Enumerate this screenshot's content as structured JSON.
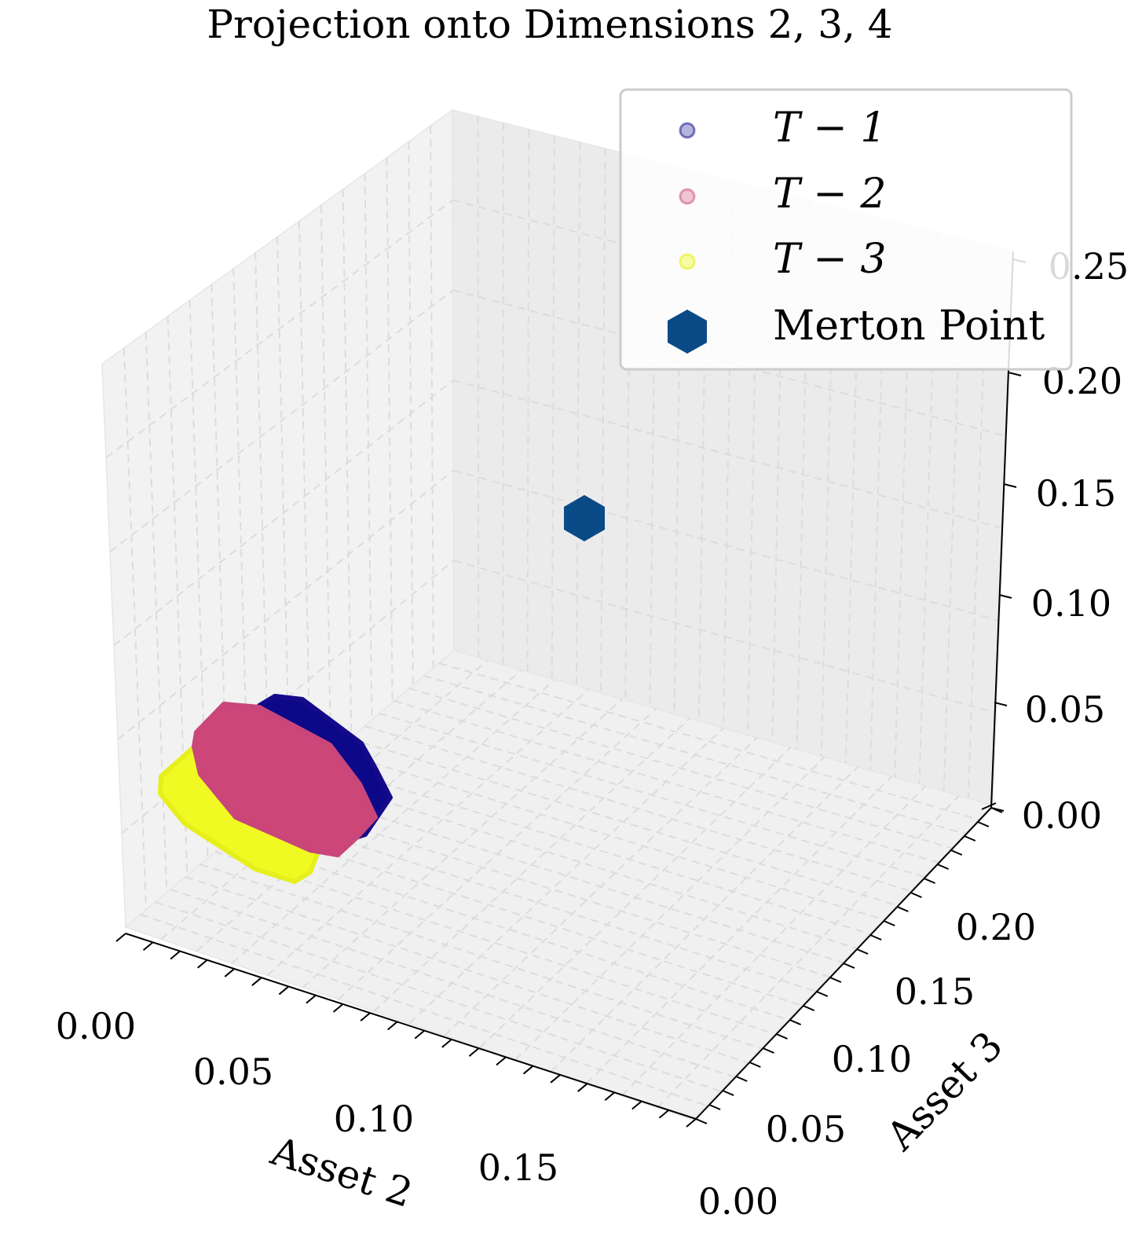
{
  "chart_data": {
    "type": "scatter",
    "projection": "3d",
    "title": "Projection onto Dimensions 2, 3, 4",
    "xlabel": "Asset 2",
    "ylabel": "Asset 3",
    "zlabel": "",
    "xlim": [
      0.0,
      0.2
    ],
    "ylim": [
      0.0,
      0.22
    ],
    "zlim": [
      0.0,
      0.25
    ],
    "xticks": [
      "0.00",
      "0.05",
      "0.10",
      "0.15"
    ],
    "yticks": [
      "0.00",
      "0.05",
      "0.10",
      "0.15",
      "0.20"
    ],
    "zticks": [
      "0.00",
      "0.05",
      "0.10",
      "0.15",
      "0.20",
      "0.25"
    ],
    "grid": true,
    "legend_position": "top-right",
    "series": [
      {
        "name": "T-1",
        "legend_label": "T − 1",
        "color": "#0d0887",
        "marker": "circle",
        "region": "hexagonal point cloud",
        "x_range": [
          0.03,
          0.055
        ],
        "y_range": [
          0.06,
          0.085
        ],
        "z_range": [
          0.005,
          0.03
        ]
      },
      {
        "name": "T-2",
        "legend_label": "T − 2",
        "color": "#cc4778",
        "marker": "circle",
        "region": "hexagonal point cloud",
        "x_range": [
          0.025,
          0.05
        ],
        "y_range": [
          0.05,
          0.075
        ],
        "z_range": [
          0.005,
          0.03
        ]
      },
      {
        "name": "T-3",
        "legend_label": "T − 3",
        "color": "#f0f921",
        "marker": "circle",
        "region": "hexagonal point cloud",
        "x_range": [
          0.015,
          0.04
        ],
        "y_range": [
          0.04,
          0.065
        ],
        "z_range": [
          0.0,
          0.02
        ]
      },
      {
        "name": "Merton Point",
        "legend_label": "Merton Point",
        "color": "#0a4a87",
        "marker": "hexagon",
        "x": 0.0,
        "y": 0.22,
        "z": 0.02
      }
    ]
  }
}
